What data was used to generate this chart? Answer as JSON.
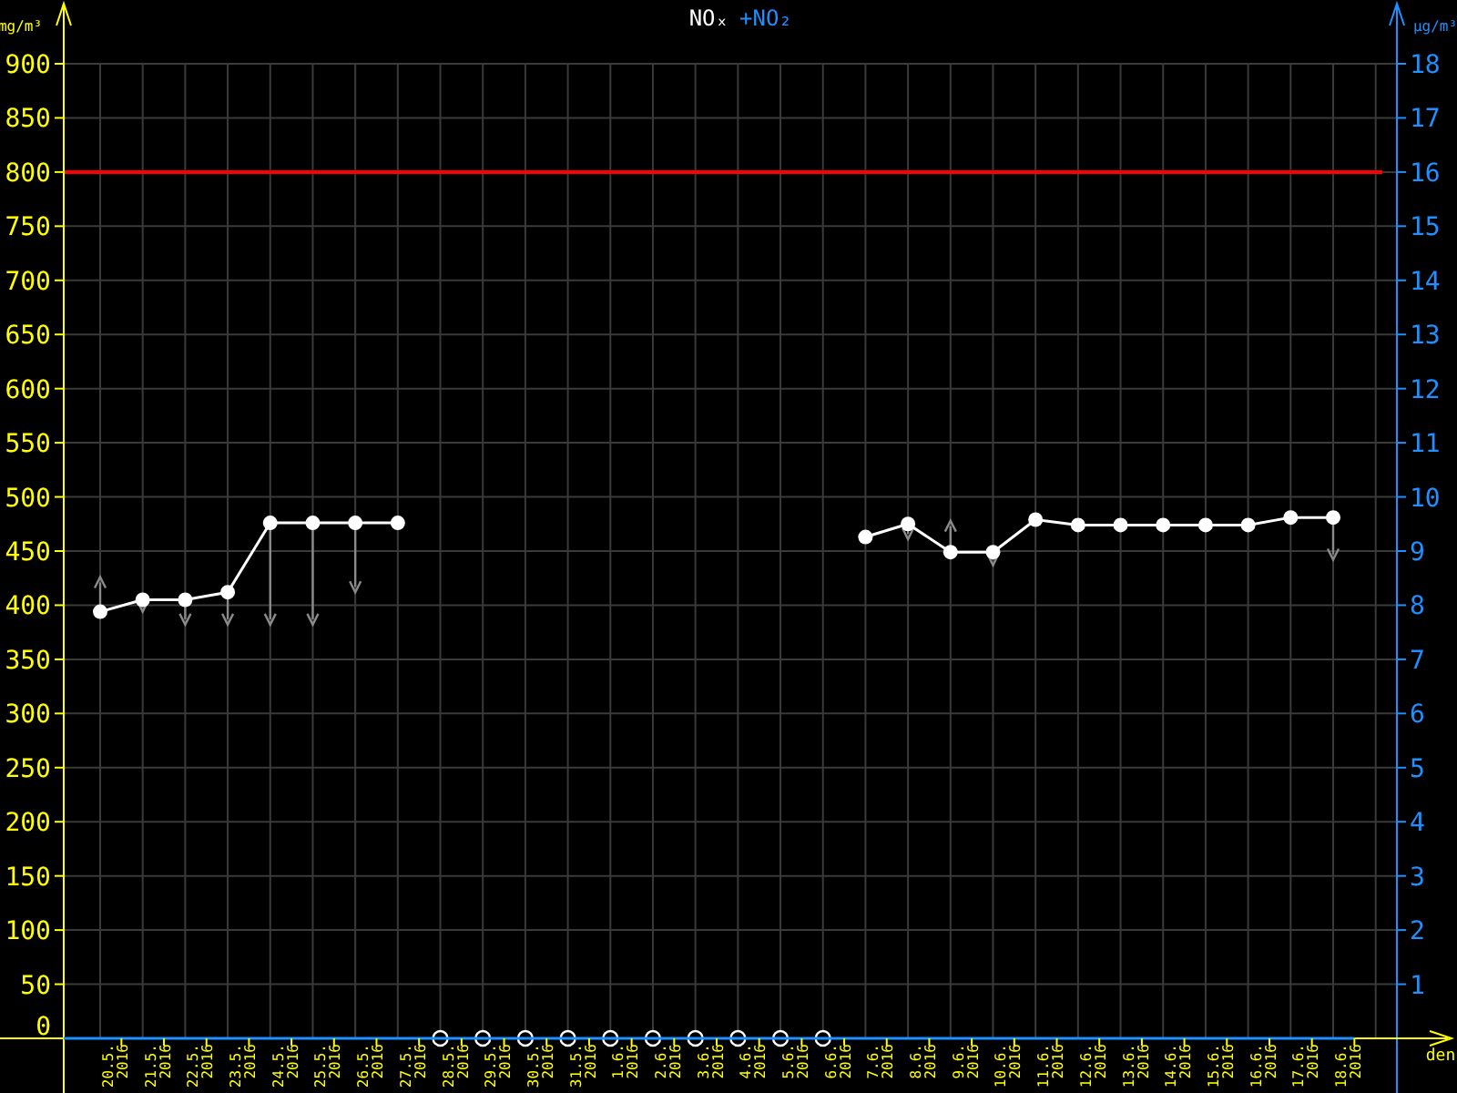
{
  "chart_data": {
    "type": "line",
    "title": "NOₓ",
    "subtitle": "+NO₂",
    "ylabel": "mg/m³",
    "y2label": "µg/m³",
    "xlabel": "den",
    "categories": [
      "20.5. 2016",
      "21.5. 2016",
      "22.5. 2016",
      "23.5. 2016",
      "24.5. 2016",
      "25.5. 2016",
      "26.5. 2016",
      "27.5. 2016",
      "28.5. 2016",
      "29.5. 2016",
      "30.5. 2016",
      "31.5. 2016",
      "1.6. 2016",
      "2.6. 2016",
      "3.6. 2016",
      "4.6. 2016",
      "5.6. 2016",
      "6.6. 2016",
      "7.6. 2016",
      "8.6. 2016",
      "9.6. 2016",
      "10.6. 2016",
      "11.6. 2016",
      "12.6. 2016",
      "13.6. 2016",
      "14.6. 2016",
      "15.6. 2016",
      "16.6. 2016",
      "17.6. 2016",
      "18.6. 2016"
    ],
    "series": [
      {
        "color": "#ffffff",
        "marker": "circle",
        "values": [
          394,
          405,
          405,
          412,
          476,
          476,
          476,
          476,
          null,
          null,
          null,
          null,
          null,
          null,
          null,
          null,
          null,
          null,
          463,
          475,
          449,
          449,
          479,
          474,
          474,
          474,
          474,
          474,
          481,
          481
        ],
        "errors": [
          [
            394,
            421
          ],
          [
            399,
            405
          ],
          [
            387,
            405
          ],
          [
            387,
            412
          ],
          [
            387,
            476
          ],
          [
            387,
            476
          ],
          [
            417,
            476
          ],
          null,
          null,
          null,
          null,
          null,
          null,
          null,
          null,
          null,
          null,
          null,
          null,
          [
            466,
            475
          ],
          [
            449,
            473
          ],
          [
            442,
            449
          ],
          null,
          null,
          null,
          null,
          null,
          null,
          null,
          [
            447,
            481
          ]
        ]
      },
      {
        "type": "scatter",
        "color": "#ffffff",
        "marker": "circle",
        "values": [
          null,
          null,
          null,
          null,
          null,
          null,
          null,
          null,
          0,
          0,
          0,
          0,
          0,
          0,
          0,
          0,
          0,
          0,
          null,
          null,
          null,
          null,
          null,
          null,
          null,
          null,
          null,
          null,
          null,
          null
        ]
      }
    ],
    "ylim": [
      0,
      900
    ],
    "yticks": [
      0,
      50,
      100,
      150,
      200,
      250,
      300,
      350,
      400,
      450,
      500,
      550,
      600,
      650,
      700,
      750,
      800,
      850,
      900
    ],
    "y2lim": [
      0,
      18
    ],
    "y2ticks": [
      1,
      2,
      3,
      4,
      5,
      6,
      7,
      8,
      9,
      10,
      11,
      12,
      13,
      14,
      15,
      16,
      17,
      18
    ],
    "ref_lines": [
      {
        "axis": "y",
        "value": 800,
        "color": "#ff0000"
      }
    ],
    "grid": true
  }
}
